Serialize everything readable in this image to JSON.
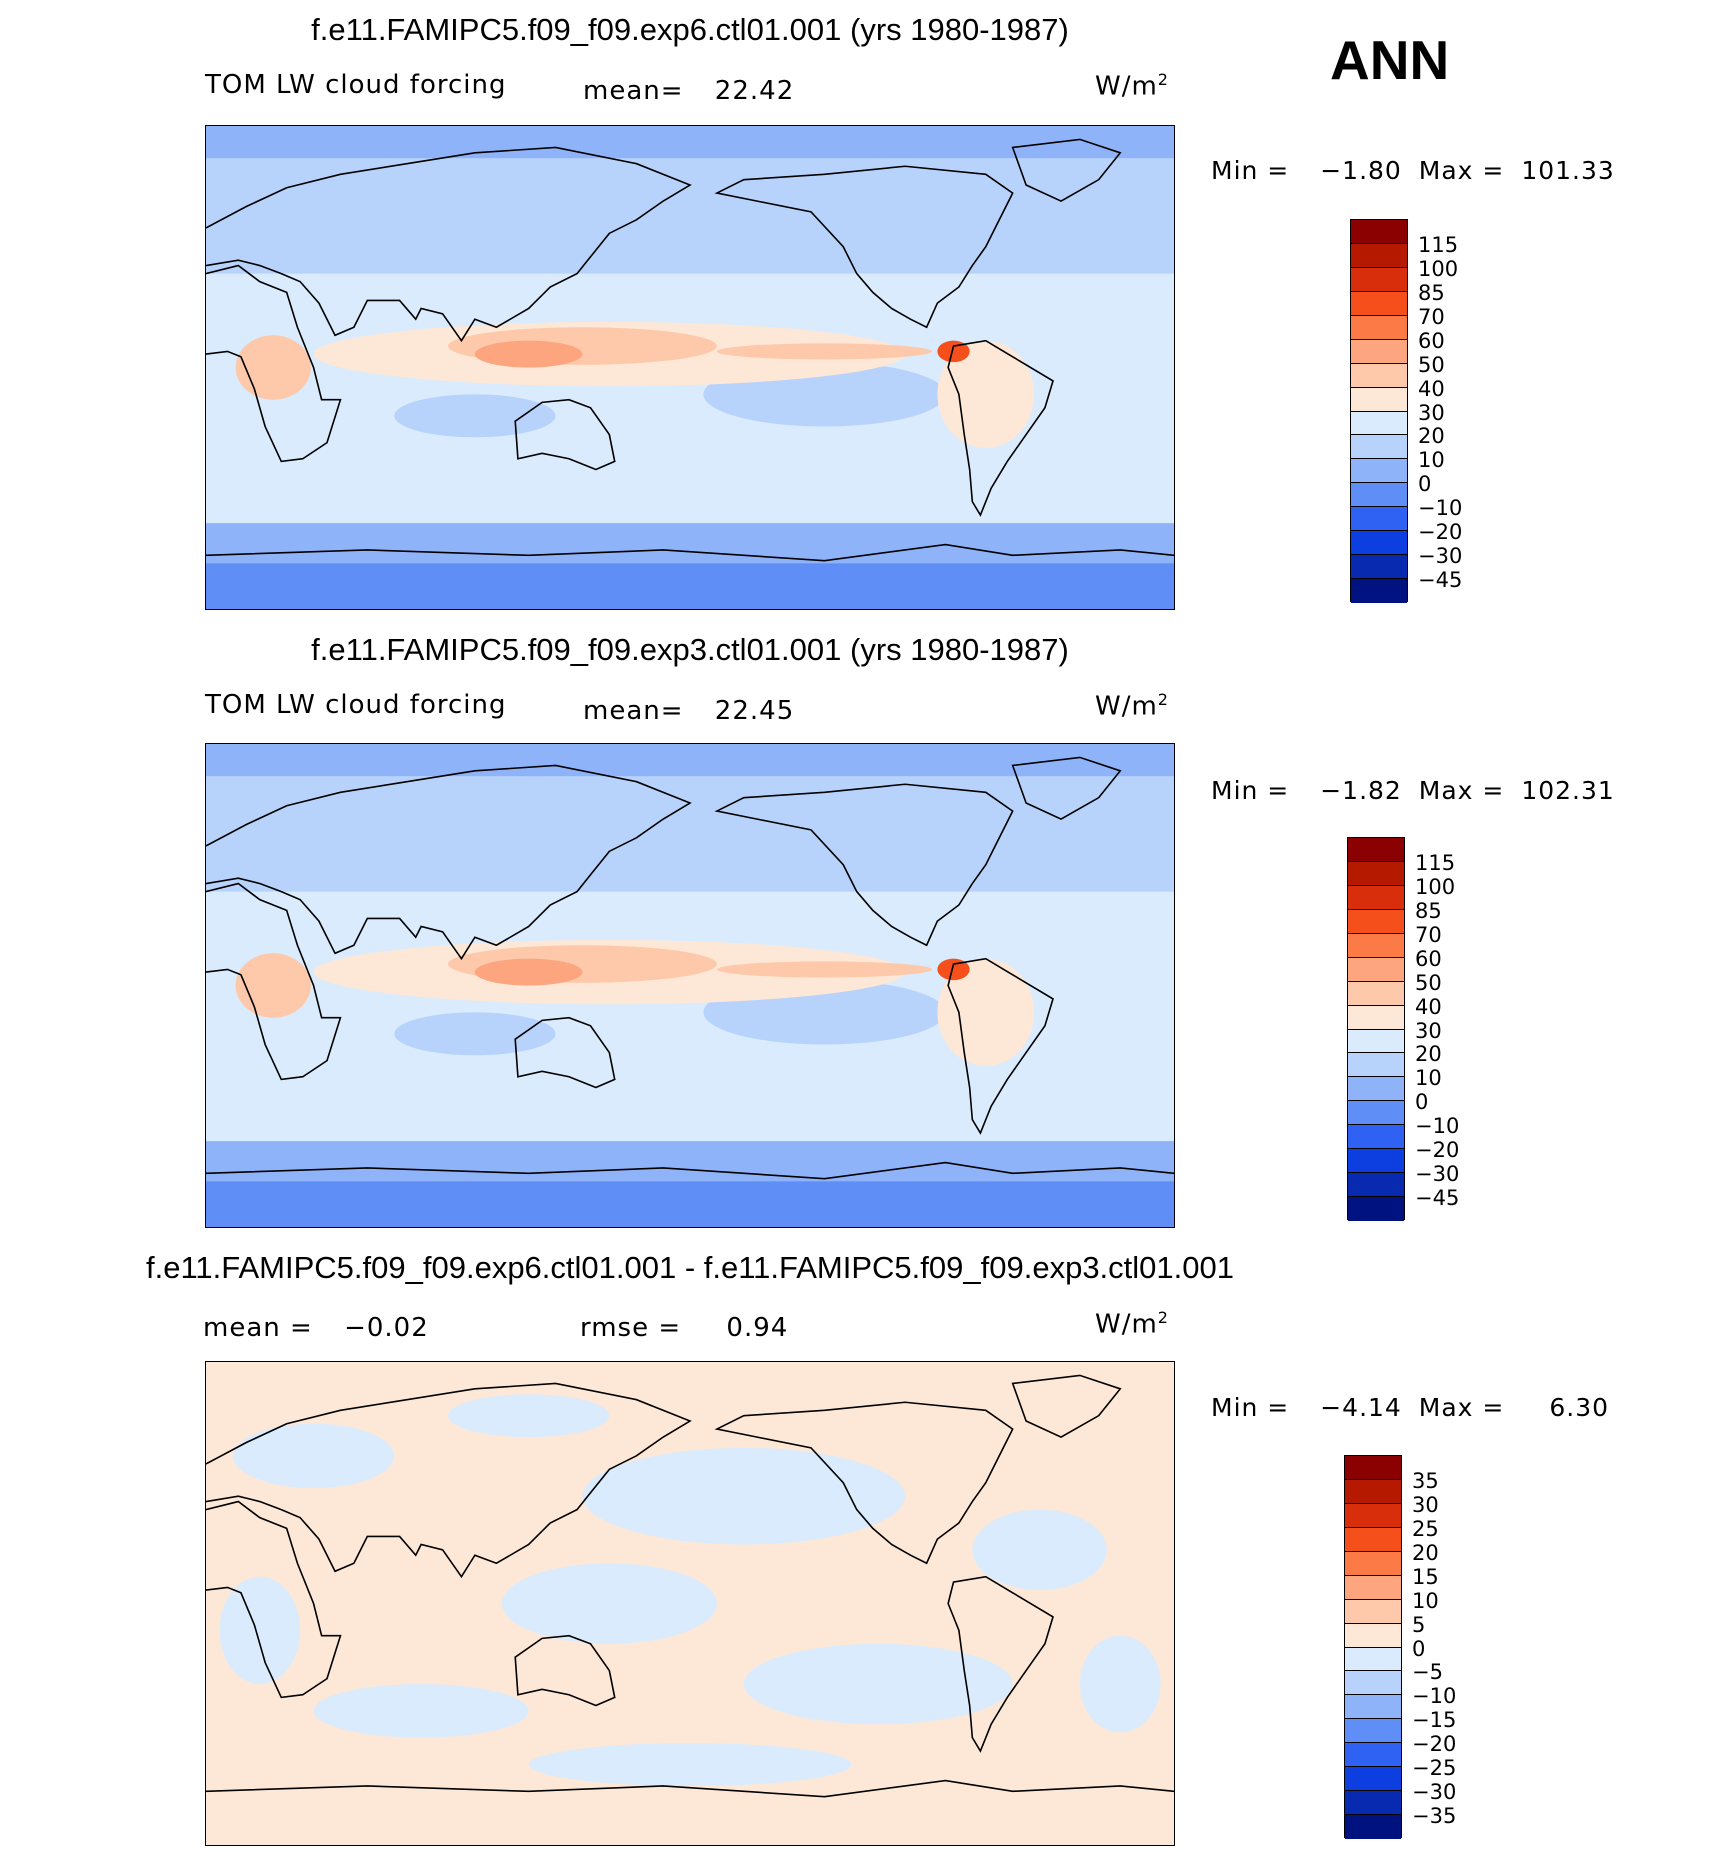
{
  "season": "ANN",
  "units": "W/m",
  "units_exp": "2",
  "panels": [
    {
      "title": "f.e11.FAMIPC5.f09_f09.exp6.ctl01.001 (yrs 1980-1987)",
      "variable": "TOM LW cloud forcing",
      "stat_label": "mean=",
      "stat_value": "22.42",
      "min_label": "Min =",
      "min_value": "−1.80",
      "max_label": "Max =",
      "max_value": "101.33",
      "levels": [
        "115",
        "100",
        "85",
        "70",
        "60",
        "50",
        "40",
        "30",
        "20",
        "10",
        "0",
        "−10",
        "−20",
        "−30",
        "−45"
      ],
      "colors": [
        "#8b0000",
        "#b51a00",
        "#d92e0b",
        "#f5501c",
        "#fb7a46",
        "#fca57e",
        "#fdc9aa",
        "#fde8d7",
        "#d9ebfc",
        "#b7d3fb",
        "#8fb3f8",
        "#5f8ef6",
        "#2f62f2",
        "#0d3fe0",
        "#082ab1",
        "#00127f"
      ]
    },
    {
      "title": "f.e11.FAMIPC5.f09_f09.exp3.ctl01.001 (yrs 1980-1987)",
      "variable": "TOM LW cloud forcing",
      "stat_label": "mean=",
      "stat_value": "22.45",
      "min_label": "Min =",
      "min_value": "−1.82",
      "max_label": "Max =",
      "max_value": "102.31",
      "levels": [
        "115",
        "100",
        "85",
        "70",
        "60",
        "50",
        "40",
        "30",
        "20",
        "10",
        "0",
        "−10",
        "−20",
        "−30",
        "−45"
      ],
      "colors": [
        "#8b0000",
        "#b51a00",
        "#d92e0b",
        "#f5501c",
        "#fb7a46",
        "#fca57e",
        "#fdc9aa",
        "#fde8d7",
        "#d9ebfc",
        "#b7d3fb",
        "#8fb3f8",
        "#5f8ef6",
        "#2f62f2",
        "#0d3fe0",
        "#082ab1",
        "#00127f"
      ]
    },
    {
      "title": "f.e11.FAMIPC5.f09_f09.exp6.ctl01.001 - f.e11.FAMIPC5.f09_f09.exp3.ctl01.001",
      "mean_label": "mean =",
      "mean_value": "−0.02",
      "rmse_label": "rmse =",
      "rmse_value": "0.94",
      "min_label": "Min =",
      "min_value": "−4.14",
      "max_label": "Max =",
      "max_value": "6.30",
      "levels": [
        "35",
        "30",
        "25",
        "20",
        "15",
        "10",
        "5",
        "0",
        "−5",
        "−10",
        "−15",
        "−20",
        "−25",
        "−30",
        "−35"
      ],
      "colors": [
        "#8b0000",
        "#b51a00",
        "#d92e0b",
        "#f5501c",
        "#fb7a46",
        "#fca57e",
        "#fdc9aa",
        "#fde8d7",
        "#d9ebfc",
        "#b7d3fb",
        "#8fb3f8",
        "#5f8ef6",
        "#2f62f2",
        "#0d3fe0",
        "#082ab1",
        "#00127f"
      ]
    }
  ]
}
